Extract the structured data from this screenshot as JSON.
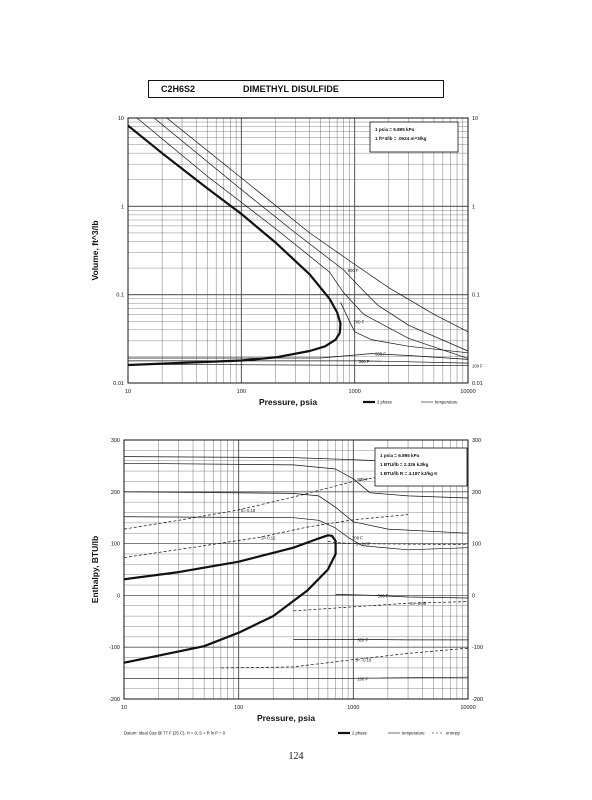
{
  "page": {
    "formula": "C2H6S2",
    "name": "DIMETHYL DISULFIDE",
    "page_number": "124"
  },
  "chart_data": [
    {
      "type": "line",
      "xscale": "log",
      "yscale": "log",
      "xlim": [
        10,
        10000
      ],
      "ylim": [
        0.01,
        10
      ],
      "xlabel": "Pressure,  psia",
      "ylabel": "Volume, ft^3/lb",
      "xticks": [
        "10",
        "100",
        "1000",
        "10000"
      ],
      "yticks": [
        "0.01",
        "0.1",
        "1",
        "10"
      ],
      "yticks_right": [
        "0.01",
        "0.1",
        "1",
        "10"
      ],
      "note": [
        "1 psia  =  6.895 kPa",
        "1 ft^3/lb  =  .0624 m^3/kg"
      ],
      "legend": [
        "2 phase",
        "temperature"
      ],
      "grid": true,
      "series": [
        {
          "kind": "2 phase",
          "points": [
            [
              10,
              8.2
            ],
            [
              20,
              4.0
            ],
            [
              50,
              1.6
            ],
            [
              100,
              0.82
            ],
            [
              200,
              0.39
            ],
            [
              400,
              0.17
            ],
            [
              600,
              0.09
            ],
            [
              700,
              0.063
            ],
            [
              750,
              0.047
            ],
            [
              740,
              0.037
            ],
            [
              680,
              0.031
            ],
            [
              550,
              0.026
            ],
            [
              400,
              0.023
            ],
            [
              200,
              0.0195
            ],
            [
              100,
              0.018
            ],
            [
              10,
              0.016
            ]
          ]
        },
        {
          "label": "",
          "points": [
            [
              12,
              10
            ],
            [
              50,
              2.2
            ],
            [
              200,
              0.56
            ],
            [
              600,
              0.18
            ],
            [
              800,
              0.105
            ],
            [
              1200,
              0.06
            ],
            [
              3000,
              0.032
            ],
            [
              10000,
              0.019
            ]
          ]
        },
        {
          "label": "800 F",
          "points": [
            [
              17,
              10
            ],
            [
              100,
              1.55
            ],
            [
              300,
              0.5
            ],
            [
              800,
              0.19
            ],
            [
              1200,
              0.11
            ],
            [
              1600,
              0.076
            ],
            [
              3000,
              0.045
            ],
            [
              10000,
              0.023
            ]
          ]
        },
        {
          "label": "",
          "points": [
            [
              22,
              10
            ],
            [
              100,
              2.1
            ],
            [
              400,
              0.5
            ],
            [
              1000,
              0.22
            ],
            [
              2000,
              0.12
            ],
            [
              5000,
              0.06
            ],
            [
              10000,
              0.038
            ]
          ]
        },
        {
          "label": "700 F",
          "points": [
            [
              750,
              0.082
            ],
            [
              900,
              0.05
            ],
            [
              1000,
              0.038
            ],
            [
              1400,
              0.031
            ],
            [
              3000,
              0.026
            ],
            [
              10000,
              0.022
            ]
          ]
        },
        {
          "label": "500 F",
          "points": [
            [
              10,
              0.0192
            ],
            [
              500,
              0.0192
            ],
            [
              1400,
              0.0215
            ],
            [
              3000,
              0.0205
            ],
            [
              10000,
              0.0185
            ]
          ]
        },
        {
          "label": "300 F",
          "points": [
            [
              10,
              0.0178
            ],
            [
              1000,
              0.0178
            ],
            [
              2000,
              0.0176
            ],
            [
              10000,
              0.0168
            ]
          ]
        },
        {
          "label": "100 F",
          "points": [
            [
              10,
              0.0163
            ],
            [
              10000,
              0.0157
            ]
          ]
        }
      ]
    },
    {
      "type": "line",
      "xscale": "log",
      "yscale": "linear",
      "xlim": [
        10,
        10000
      ],
      "ylim": [
        -200,
        300
      ],
      "xlabel": "Pressure,  psia",
      "ylabel": "Enthalpy, BTU/lb",
      "xticks": [
        "10",
        "100",
        "1000",
        "10000"
      ],
      "yticks": [
        "-200",
        "-100",
        "0",
        "100",
        "200",
        "300"
      ],
      "yticks_right": [
        "-200",
        "-100",
        "0",
        "100",
        "200",
        "300"
      ],
      "note": [
        "1 psia  =  6.895 kPa",
        "1 BTU/lb  =  2.326 kJ/kg",
        "1 BTU/lb R  =  4.187 kJ/kg K"
      ],
      "legend": [
        "2 phase",
        "temperature",
        "entropy"
      ],
      "datum": "Datum:  Ideal Gas @ 77 F (25 C),  H = 0,  S = R ln P = 0",
      "grid": true,
      "series": [
        {
          "kind": "2 phase",
          "points": [
            [
              10,
              31
            ],
            [
              30,
              45
            ],
            [
              100,
              65
            ],
            [
              300,
              92
            ],
            [
              500,
              110
            ],
            [
              600,
              116
            ],
            [
              650,
              115
            ],
            [
              700,
              105
            ],
            [
              700,
              80
            ],
            [
              600,
              50
            ],
            [
              400,
              10
            ],
            [
              200,
              -40
            ],
            [
              100,
              -72
            ],
            [
              50,
              -98
            ],
            [
              10,
              -130
            ]
          ]
        },
        {
          "label": "",
          "points": [
            [
              10,
              268
            ],
            [
              300,
              266
            ],
            [
              1000,
              262
            ],
            [
              3000,
              258
            ],
            [
              10000,
              255
            ]
          ]
        },
        {
          "label": "800 F",
          "points": [
            [
              10,
              255
            ],
            [
              300,
              252
            ],
            [
              700,
              244
            ],
            [
              1000,
              225
            ],
            [
              1400,
              198
            ],
            [
              3000,
              192
            ],
            [
              10000,
              188
            ]
          ]
        },
        {
          "label": "",
          "points": [
            [
              10,
              200
            ],
            [
              300,
              197
            ],
            [
              500,
              192
            ],
            [
              700,
              170
            ],
            [
              1000,
              142
            ],
            [
              2000,
              128
            ],
            [
              10000,
              120
            ]
          ]
        },
        {
          "label": "700 F",
          "points": [
            [
              10,
              152
            ],
            [
              300,
              150
            ],
            [
              500,
              145
            ],
            [
              700,
              130
            ],
            [
              900,
              112
            ],
            [
              1200,
              96
            ],
            [
              3000,
              88
            ],
            [
              10000,
              92
            ]
          ]
        },
        {
          "label": "500 F",
          "points": [
            [
              700,
              2
            ],
            [
              1500,
              0
            ],
            [
              3000,
              -3
            ],
            [
              10000,
              -5
            ]
          ]
        },
        {
          "label": "300 F",
          "points": [
            [
              300,
              -85
            ],
            [
              1000,
              -85
            ],
            [
              3000,
              -86
            ],
            [
              10000,
              -86
            ]
          ]
        },
        {
          "label": "100 F",
          "points": [
            [
              10,
              -160
            ],
            [
              1000,
              -160
            ],
            [
              10000,
              -158
            ]
          ]
        },
        {
          "kind": "entropy",
          "label": "S= 0.18",
          "points": [
            [
              10,
              128
            ],
            [
              30,
              145
            ],
            [
              100,
              165
            ],
            [
              300,
              190
            ],
            [
              1000,
              220
            ],
            [
              3000,
              238
            ],
            [
              10000,
              248
            ]
          ]
        },
        {
          "kind": "entropy",
          "label": "S= 0.12",
          "points": [
            [
              10,
              73
            ],
            [
              50,
              96
            ],
            [
              150,
              112
            ],
            [
              400,
              132
            ],
            [
              1000,
              146
            ],
            [
              3000,
              156
            ]
          ]
        },
        {
          "kind": "entropy",
          "label": "S= 0.07",
          "points": [
            [
              600,
              104
            ],
            [
              700,
              102
            ],
            [
              1000,
              100
            ],
            [
              3000,
              99
            ],
            [
              10000,
              98
            ]
          ]
        },
        {
          "kind": "entropy",
          "label": "S= -0.05",
          "points": [
            [
              300,
              -30
            ],
            [
              1000,
              -22
            ],
            [
              3000,
              -15
            ],
            [
              10000,
              -12
            ]
          ]
        },
        {
          "kind": "entropy",
          "label": "S= -0.18",
          "points": [
            [
              70,
              -140
            ],
            [
              300,
              -138
            ],
            [
              1000,
              -124
            ],
            [
              3000,
              -112
            ],
            [
              10000,
              -102
            ]
          ]
        }
      ]
    }
  ]
}
